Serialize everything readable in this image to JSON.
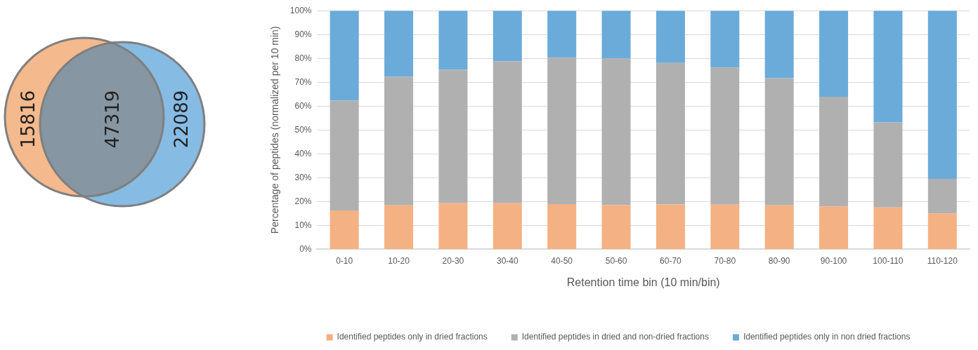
{
  "chart_data": [
    {
      "type": "other",
      "categories": [
        null,
        null,
        null
      ],
      "values": [
        15816,
        47319,
        22089
      ],
      "colors": [
        "#f4b98c",
        "#8696a2",
        "#86bbe4"
      ],
      "data_labels": true
    },
    {
      "type": "bar",
      "stacked": true,
      "xlabel": "Retention time bin (10 min/bin)",
      "ylabel": "Percentage of peptides (normalized per 10 min)",
      "categories": [
        "0-10",
        "10-20",
        "20-30",
        "30-40",
        "40-50",
        "50-60",
        "60-70",
        "70-80",
        "80-90",
        "90-100",
        "100-110",
        "110-120"
      ],
      "series": [
        {
          "name": "Identified peptides only in dried fractions",
          "color": "#f4b183",
          "values": [
            16.3,
            18.4,
            19.3,
            19.3,
            18.9,
            18.5,
            18.8,
            18.7,
            18.4,
            18.0,
            17.5,
            15.0
          ]
        },
        {
          "name": "Identified peptides in dried and non-dried fractions",
          "color": "#b0b0b0",
          "values": [
            46.0,
            53.9,
            55.9,
            59.5,
            61.4,
            61.5,
            59.3,
            57.5,
            53.3,
            45.9,
            35.7,
            14.5
          ]
        },
        {
          "name": "Identified peptides only in non dried fractions",
          "color": "#6aabd9",
          "values": [
            37.7,
            27.7,
            24.8,
            21.2,
            19.7,
            20.0,
            21.9,
            23.8,
            28.3,
            36.1,
            46.8,
            70.5
          ]
        }
      ],
      "ylim": [
        0,
        100
      ],
      "yticks": [
        {
          "value": 0,
          "label": "0%"
        },
        {
          "value": 10,
          "label": "10%"
        },
        {
          "value": 20,
          "label": "20%"
        },
        {
          "value": 30,
          "label": "30%"
        },
        {
          "value": 40,
          "label": "40%"
        },
        {
          "value": 50,
          "label": "50%"
        },
        {
          "value": 60,
          "label": "60%"
        },
        {
          "value": 70,
          "label": "70%"
        },
        {
          "value": 80,
          "label": "80%"
        },
        {
          "value": 90,
          "label": "90%"
        },
        {
          "value": 100,
          "label": "100%"
        }
      ],
      "grid": "y",
      "legend": "bottom"
    }
  ]
}
